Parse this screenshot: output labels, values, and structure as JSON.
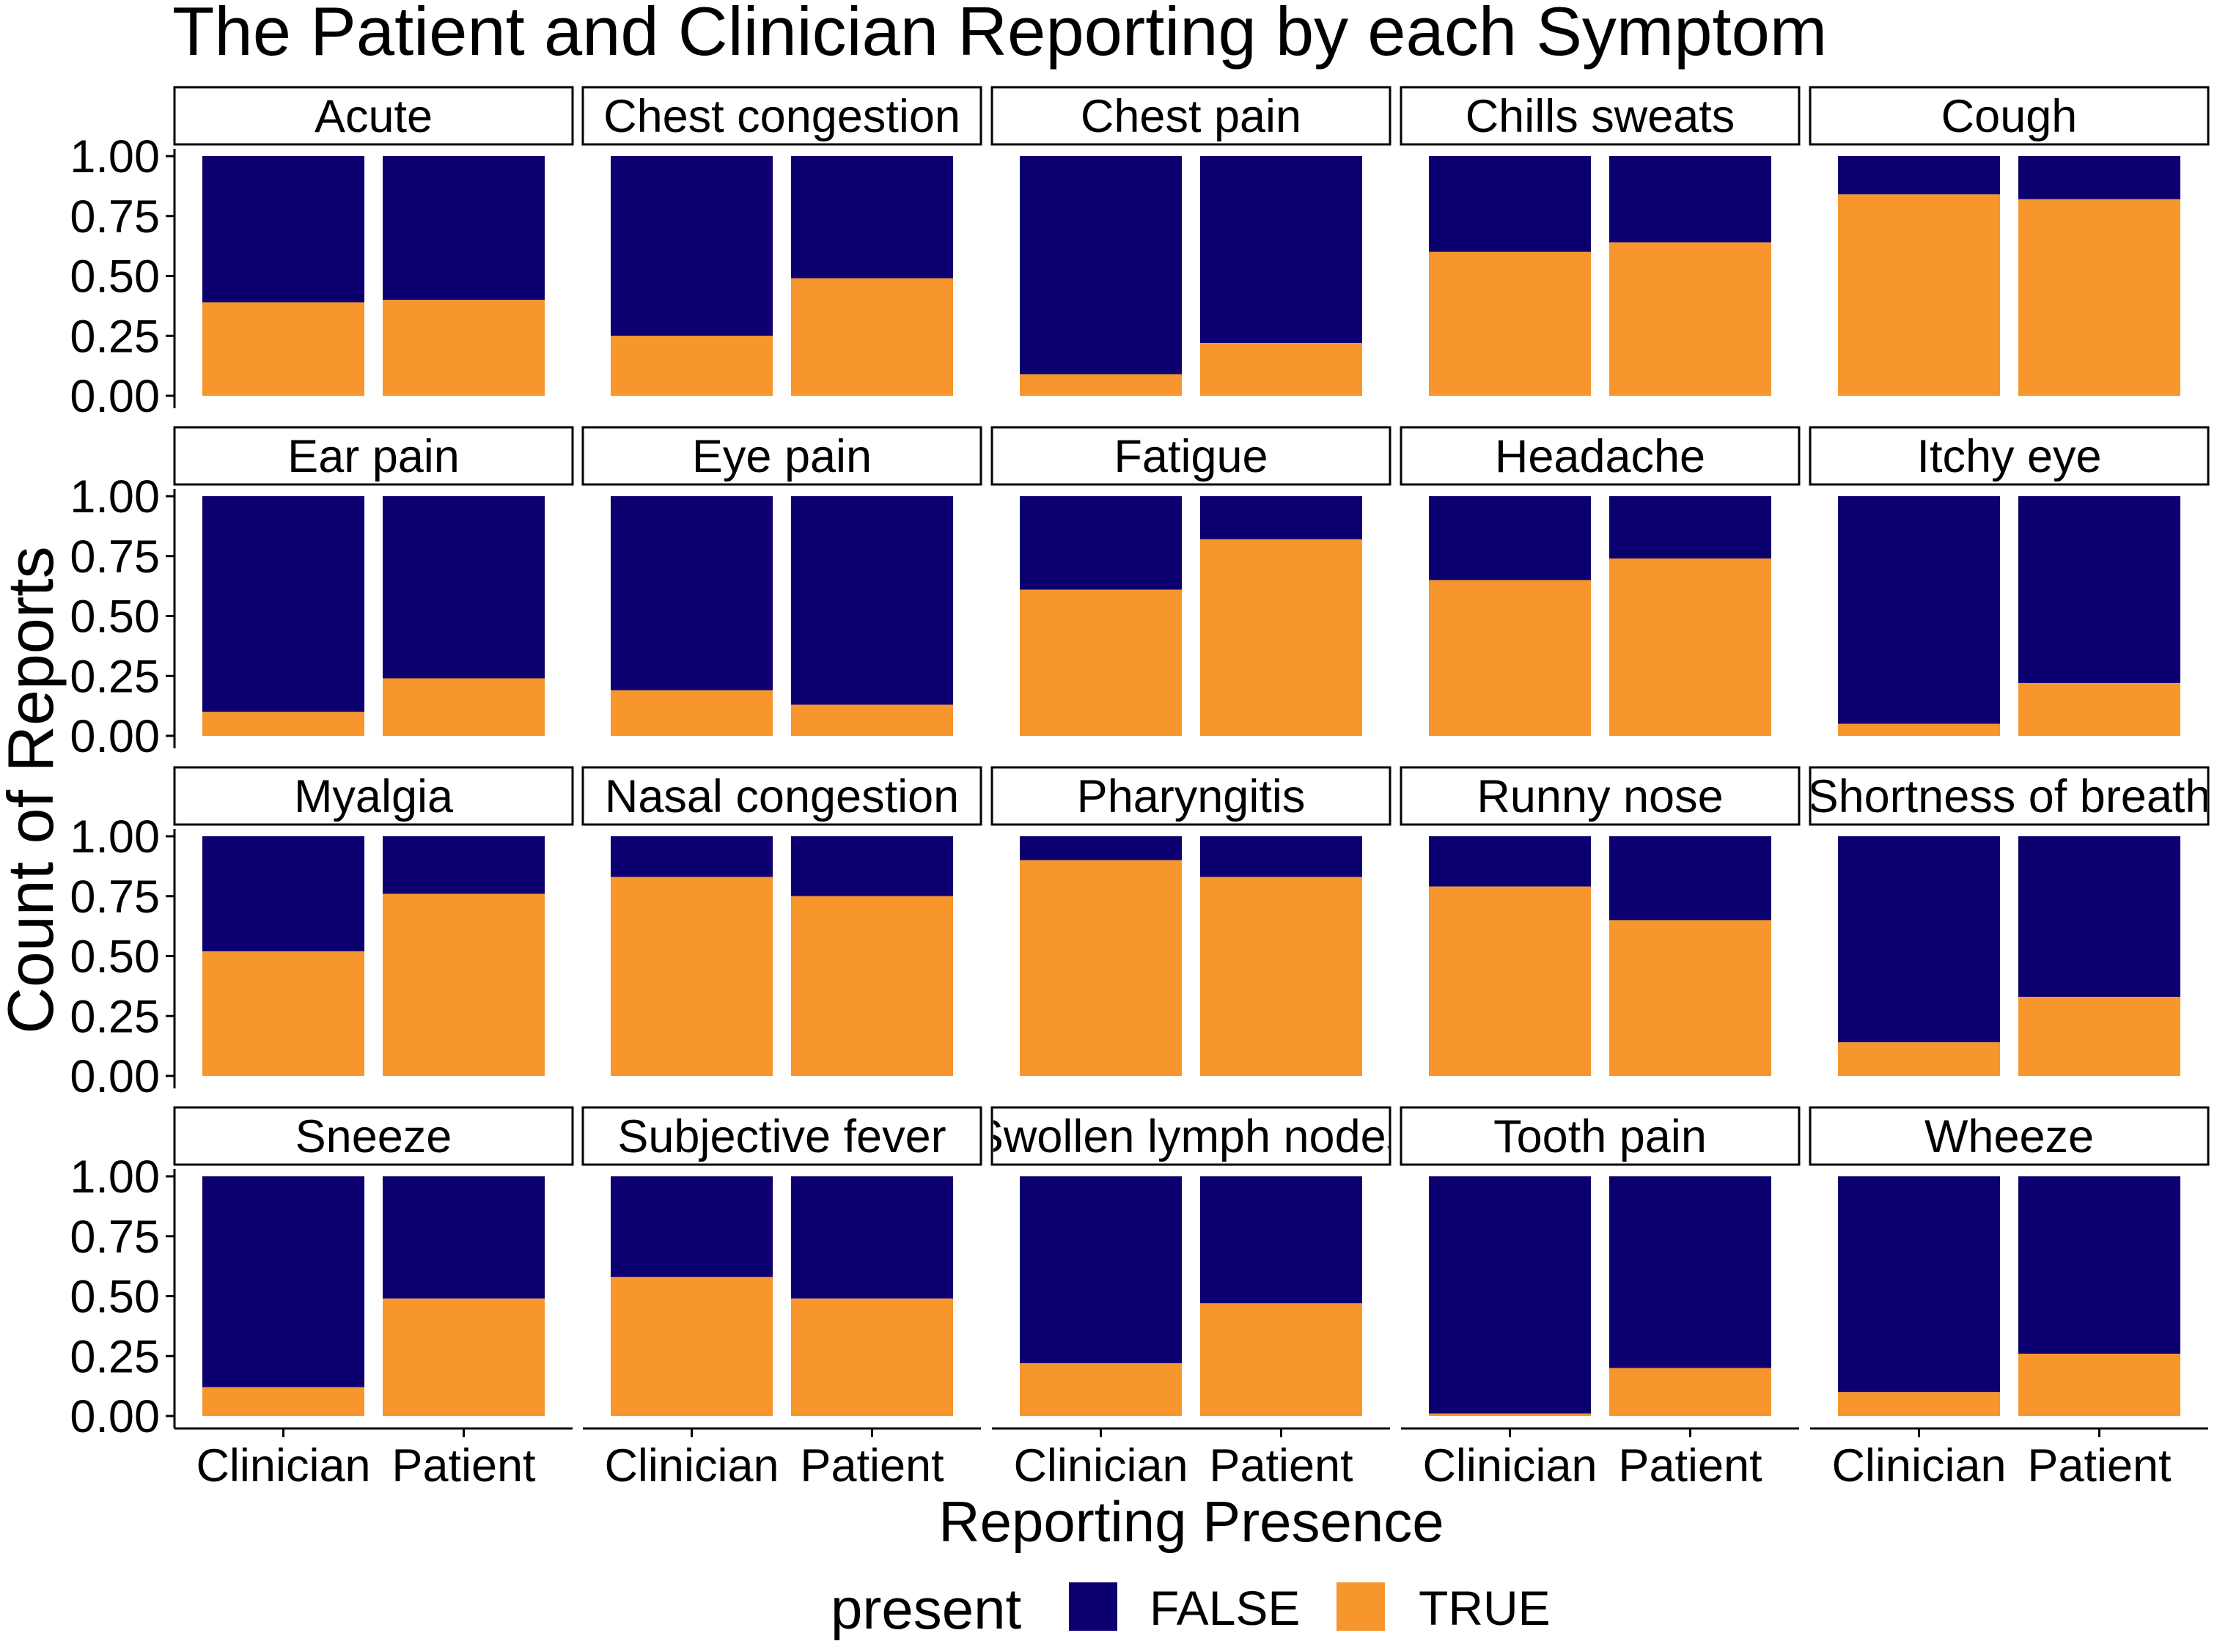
{
  "chart_data": {
    "type": "bar",
    "stacked": true,
    "title": "The Patient and Clinician Reporting by each Symptom",
    "xlabel": "Reporting Presence",
    "ylabel": "Count of Reports",
    "ylim": [
      0,
      1
    ],
    "yticks": [
      "0.00",
      "0.25",
      "0.50",
      "0.75",
      "1.00"
    ],
    "ytick_values": [
      0,
      0.25,
      0.5,
      0.75,
      1.0
    ],
    "grid": false,
    "categories": [
      "Clinician",
      "Patient"
    ],
    "legend": {
      "title": "present",
      "position": "bottom",
      "entries": [
        {
          "label": "FALSE",
          "color": "#0c0070"
        },
        {
          "label": "TRUE",
          "color": "#f7962d"
        }
      ]
    },
    "facets": [
      {
        "label": "Acute",
        "true_values": [
          0.39,
          0.4
        ]
      },
      {
        "label": "Chest congestion",
        "true_values": [
          0.25,
          0.49
        ]
      },
      {
        "label": "Chest pain",
        "true_values": [
          0.09,
          0.22
        ]
      },
      {
        "label": "Chills sweats",
        "true_values": [
          0.6,
          0.64
        ]
      },
      {
        "label": "Cough",
        "true_values": [
          0.84,
          0.82
        ]
      },
      {
        "label": "Ear pain",
        "true_values": [
          0.1,
          0.24
        ]
      },
      {
        "label": "Eye pain",
        "true_values": [
          0.19,
          0.13
        ]
      },
      {
        "label": "Fatigue",
        "true_values": [
          0.61,
          0.82
        ]
      },
      {
        "label": "Headache",
        "true_values": [
          0.65,
          0.74
        ]
      },
      {
        "label": "Itchy eye",
        "true_values": [
          0.05,
          0.22
        ]
      },
      {
        "label": "Myalgia",
        "true_values": [
          0.52,
          0.76
        ]
      },
      {
        "label": "Nasal congestion",
        "true_values": [
          0.83,
          0.75
        ]
      },
      {
        "label": "Pharyngitis",
        "true_values": [
          0.9,
          0.83
        ]
      },
      {
        "label": "Runny nose",
        "true_values": [
          0.79,
          0.65
        ]
      },
      {
        "label": "Shortness of breath",
        "true_values": [
          0.14,
          0.33
        ]
      },
      {
        "label": "Sneeze",
        "true_values": [
          0.12,
          0.49
        ]
      },
      {
        "label": "Subjective fever",
        "true_values": [
          0.58,
          0.49
        ]
      },
      {
        "label": "Swollen lymph nodes",
        "true_values": [
          0.22,
          0.47
        ]
      },
      {
        "label": "Tooth pain",
        "true_values": [
          0.01,
          0.2
        ]
      },
      {
        "label": "Wheeze",
        "true_values": [
          0.1,
          0.26
        ]
      }
    ]
  }
}
